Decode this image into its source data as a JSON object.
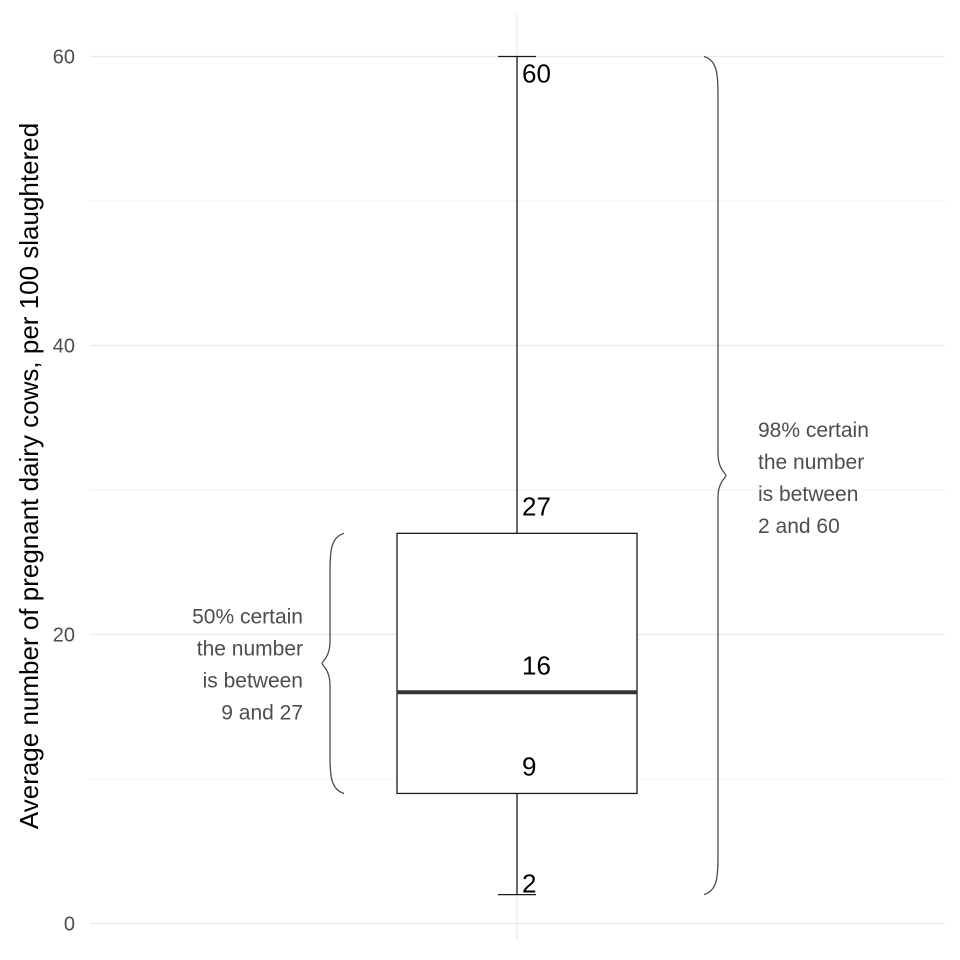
{
  "chart_data": {
    "type": "boxplot",
    "ylabel": "Average number of pregnant dairy cows, per 100 slaughtered",
    "xlabel": "",
    "ylim": [
      0,
      60
    ],
    "yticks": [
      0,
      20,
      40,
      60
    ],
    "grid": true,
    "box": {
      "min": 2,
      "q1": 9,
      "median": 16,
      "q3": 27,
      "max": 60
    },
    "value_labels": [
      "60",
      "27",
      "16",
      "9",
      "2"
    ],
    "annotations": [
      {
        "side": "left",
        "range": [
          9,
          27
        ],
        "lines": [
          "50% certain",
          "the number",
          "is between",
          "9 and 27"
        ]
      },
      {
        "side": "right",
        "range": [
          2,
          60
        ],
        "lines": [
          "98% certain",
          "the number",
          "is between",
          "2 and 60"
        ]
      }
    ]
  }
}
